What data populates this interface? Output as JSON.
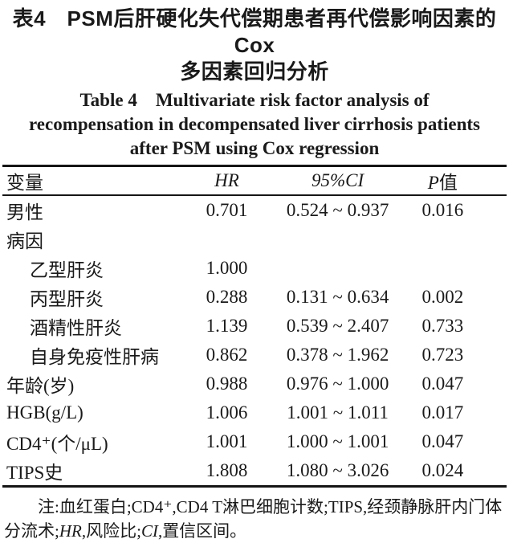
{
  "title": {
    "zh_line1": "表4　PSM后肝硬化失代偿期患者再代偿影响因素的Cox",
    "zh_line2": "多因素回归分析",
    "en_line1": "Table 4　Multivariate risk factor analysis of",
    "en_line2": "recompensation in decompensated liver cirrhosis patients",
    "en_line3": "after PSM using Cox regression"
  },
  "table": {
    "columns": [
      {
        "italic": "",
        "text": "变量"
      },
      {
        "italic": "HR",
        "text": ""
      },
      {
        "italic": "95%CI",
        "text": ""
      },
      {
        "italic": "P",
        "text": "值"
      }
    ],
    "rows": [
      {
        "label": "男性",
        "indent": false,
        "hr": "0.701",
        "ci": "0.524 ~ 0.937",
        "p": "0.016"
      },
      {
        "label": "病因",
        "indent": false,
        "hr": "",
        "ci": "",
        "p": ""
      },
      {
        "label": "乙型肝炎",
        "indent": true,
        "hr": "1.000",
        "ci": "",
        "p": ""
      },
      {
        "label": "丙型肝炎",
        "indent": true,
        "hr": "0.288",
        "ci": "0.131 ~ 0.634",
        "p": "0.002"
      },
      {
        "label": "酒精性肝炎",
        "indent": true,
        "hr": "1.139",
        "ci": "0.539 ~ 2.407",
        "p": "0.733"
      },
      {
        "label": "自身免疫性肝病",
        "indent": true,
        "hr": "0.862",
        "ci": "0.378 ~ 1.962",
        "p": "0.723"
      },
      {
        "label": "年龄(岁)",
        "indent": false,
        "hr": "0.988",
        "ci": "0.976 ~ 1.000",
        "p": "0.047"
      },
      {
        "label": "HGB(g/L)",
        "indent": false,
        "hr": "1.006",
        "ci": "1.001 ~ 1.011",
        "p": "0.017"
      },
      {
        "label": "CD4⁺(个/μL)",
        "indent": false,
        "hr": "1.001",
        "ci": "1.000 ~ 1.001",
        "p": "0.047"
      },
      {
        "label": "TIPS史",
        "indent": false,
        "hr": "1.808",
        "ci": "1.080 ~ 3.026",
        "p": "0.024"
      }
    ]
  },
  "footnote": {
    "parts": [
      {
        "text": "注:血红蛋白;CD4⁺,CD4 T淋巴细胞计数;TIPS,经颈静脉肝内门体分流术;",
        "italic": false
      },
      {
        "text": "HR",
        "italic": true
      },
      {
        "text": ",风险比;",
        "italic": false
      },
      {
        "text": "CI",
        "italic": true
      },
      {
        "text": ",置信区间。",
        "italic": false
      }
    ]
  },
  "colors": {
    "background": "#ffffff",
    "text": "#1a1a1a",
    "rule": "#151515"
  }
}
